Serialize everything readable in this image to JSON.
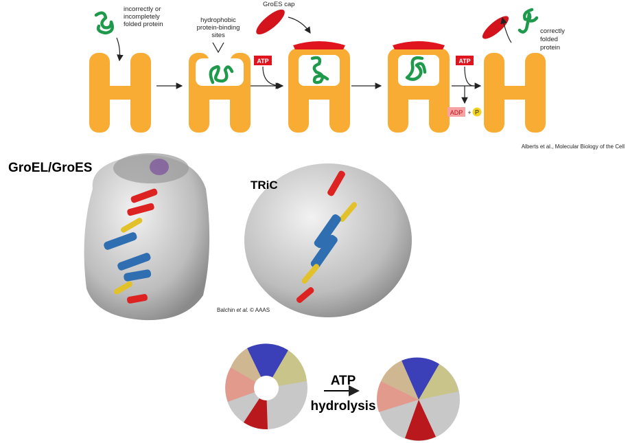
{
  "top_diagram": {
    "misfolded_label": [
      "incorrectly or",
      "incompletely",
      "folded protein"
    ],
    "binding_sites_label": [
      "hydrophobic",
      "protein-binding",
      "sites"
    ],
    "cap_label": "GroES cap",
    "atp_1": "ATP",
    "atp_2": "ATP",
    "adp": "ADP",
    "plus": "+",
    "phosphate": "P",
    "folded_label": [
      "correctly",
      "folded",
      "protein"
    ],
    "citation": "Alberts et al., Molecular Biology of the Cell"
  },
  "structures": {
    "groel_title": "GroEL/GroES",
    "tric_title": "TRiC",
    "citation": [
      "Balchin ",
      "et al.",
      " © AAAS"
    ]
  },
  "bottom": {
    "line1": "ATP",
    "line2": "hydrolysis"
  }
}
